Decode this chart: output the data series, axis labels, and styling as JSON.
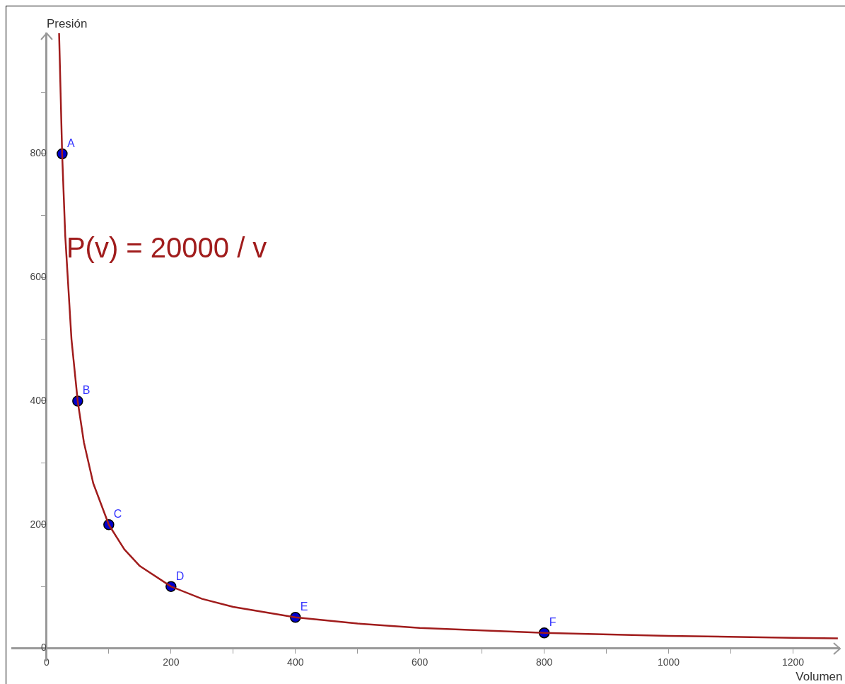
{
  "chart_data": {
    "type": "line",
    "xlabel": "Volumen",
    "ylabel": "Presión",
    "annotations": [
      "P(v) = 20000 / v",
      {
        "text": "A",
        "x": 25,
        "y": 800
      },
      {
        "text": "B",
        "x": 50,
        "y": 400
      },
      {
        "text": "C",
        "x": 100,
        "y": 200
      },
      {
        "text": "D",
        "x": 200,
        "y": 100
      },
      {
        "text": "E",
        "x": 400,
        "y": 50
      },
      {
        "text": "F",
        "x": 800,
        "y": 25
      }
    ],
    "xlim": [
      -55,
      1275
    ],
    "ylim": [
      -20,
      995
    ],
    "xticks": [
      0,
      {
        "value": 100,
        "label": null
      },
      200,
      {
        "value": 300,
        "label": null
      },
      400,
      {
        "value": 500,
        "label": null
      },
      600,
      {
        "value": 700,
        "label": null
      },
      800,
      {
        "value": 900,
        "label": null
      },
      1000,
      {
        "value": 1100,
        "label": null
      },
      1200
    ],
    "yticks": [
      0,
      {
        "value": 100,
        "label": null
      },
      200,
      {
        "value": 300,
        "label": null
      },
      400,
      {
        "value": 500,
        "label": null
      },
      600,
      {
        "value": 700,
        "label": null
      },
      800,
      {
        "value": 900,
        "label": null
      }
    ],
    "grid": false,
    "legend": false,
    "series": [
      {
        "type": "line",
        "color": "#a01c1c",
        "marker": "none",
        "x": [
          20.1,
          25,
          30,
          40,
          50,
          60,
          75,
          100,
          125,
          150,
          200,
          250,
          300,
          400,
          500,
          600,
          800,
          1000,
          1200,
          1272
        ],
        "values": [
          995,
          800,
          667,
          500,
          400,
          333,
          267,
          200,
          160,
          133,
          100,
          80,
          67,
          50,
          40,
          33,
          25,
          20,
          17,
          16
        ]
      },
      {
        "type": "scatter",
        "color": "#0000cc",
        "marker": "circle",
        "x": [
          25,
          50,
          100,
          200,
          400,
          800
        ],
        "values": [
          800,
          400,
          200,
          100,
          50,
          25
        ]
      }
    ]
  }
}
